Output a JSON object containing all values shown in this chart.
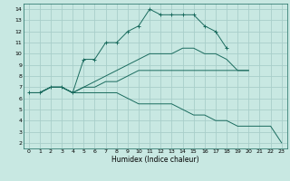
{
  "xlabel": "Humidex (Indice chaleur)",
  "xlim": [
    -0.5,
    23.5
  ],
  "ylim": [
    1.5,
    14.5
  ],
  "xticks": [
    0,
    1,
    2,
    3,
    4,
    5,
    6,
    7,
    8,
    9,
    10,
    11,
    12,
    13,
    14,
    15,
    16,
    17,
    18,
    19,
    20,
    21,
    22,
    23
  ],
  "yticks": [
    2,
    3,
    4,
    5,
    6,
    7,
    8,
    9,
    10,
    11,
    12,
    13,
    14
  ],
  "bg_color": "#c8e8e2",
  "grid_color": "#a8ceca",
  "line_color": "#1a6b5e",
  "series": [
    {
      "x": [
        0,
        1,
        2,
        3,
        4,
        5,
        6,
        7,
        8,
        9,
        10,
        11,
        12,
        13,
        14,
        15,
        16,
        17,
        18
      ],
      "y": [
        6.5,
        6.5,
        7.0,
        7.0,
        6.5,
        9.5,
        9.5,
        11.0,
        11.0,
        12.0,
        12.5,
        14.0,
        13.5,
        13.5,
        13.5,
        13.5,
        12.5,
        12.0,
        10.5
      ],
      "marker": "+"
    },
    {
      "x": [
        0,
        1,
        2,
        3,
        4,
        5,
        6,
        7,
        8,
        9,
        10,
        11,
        12,
        13,
        14,
        15,
        16,
        17,
        18,
        19,
        20
      ],
      "y": [
        6.5,
        6.5,
        7.0,
        7.0,
        6.5,
        7.0,
        7.5,
        8.0,
        8.5,
        9.0,
        9.5,
        10.0,
        10.0,
        10.0,
        10.5,
        10.5,
        10.0,
        10.0,
        9.5,
        8.5,
        8.5
      ],
      "marker": null
    },
    {
      "x": [
        0,
        1,
        2,
        3,
        4,
        5,
        6,
        7,
        8,
        9,
        10,
        11,
        12,
        13,
        14,
        15,
        16,
        17,
        18,
        19,
        20
      ],
      "y": [
        6.5,
        6.5,
        7.0,
        7.0,
        6.5,
        7.0,
        7.0,
        7.5,
        7.5,
        8.0,
        8.5,
        8.5,
        8.5,
        8.5,
        8.5,
        8.5,
        8.5,
        8.5,
        8.5,
        8.5,
        8.5
      ],
      "marker": null
    },
    {
      "x": [
        0,
        1,
        2,
        3,
        4,
        5,
        6,
        7,
        8,
        9,
        10,
        11,
        12,
        13,
        14,
        15,
        16,
        17,
        18,
        19,
        20,
        21,
        22,
        23
      ],
      "y": [
        6.5,
        6.5,
        7.0,
        7.0,
        6.5,
        6.5,
        6.5,
        6.5,
        6.5,
        6.0,
        5.5,
        5.5,
        5.5,
        5.5,
        5.0,
        4.5,
        4.5,
        4.0,
        4.0,
        3.5,
        3.5,
        3.5,
        3.5,
        2.0
      ],
      "marker": null
    }
  ]
}
